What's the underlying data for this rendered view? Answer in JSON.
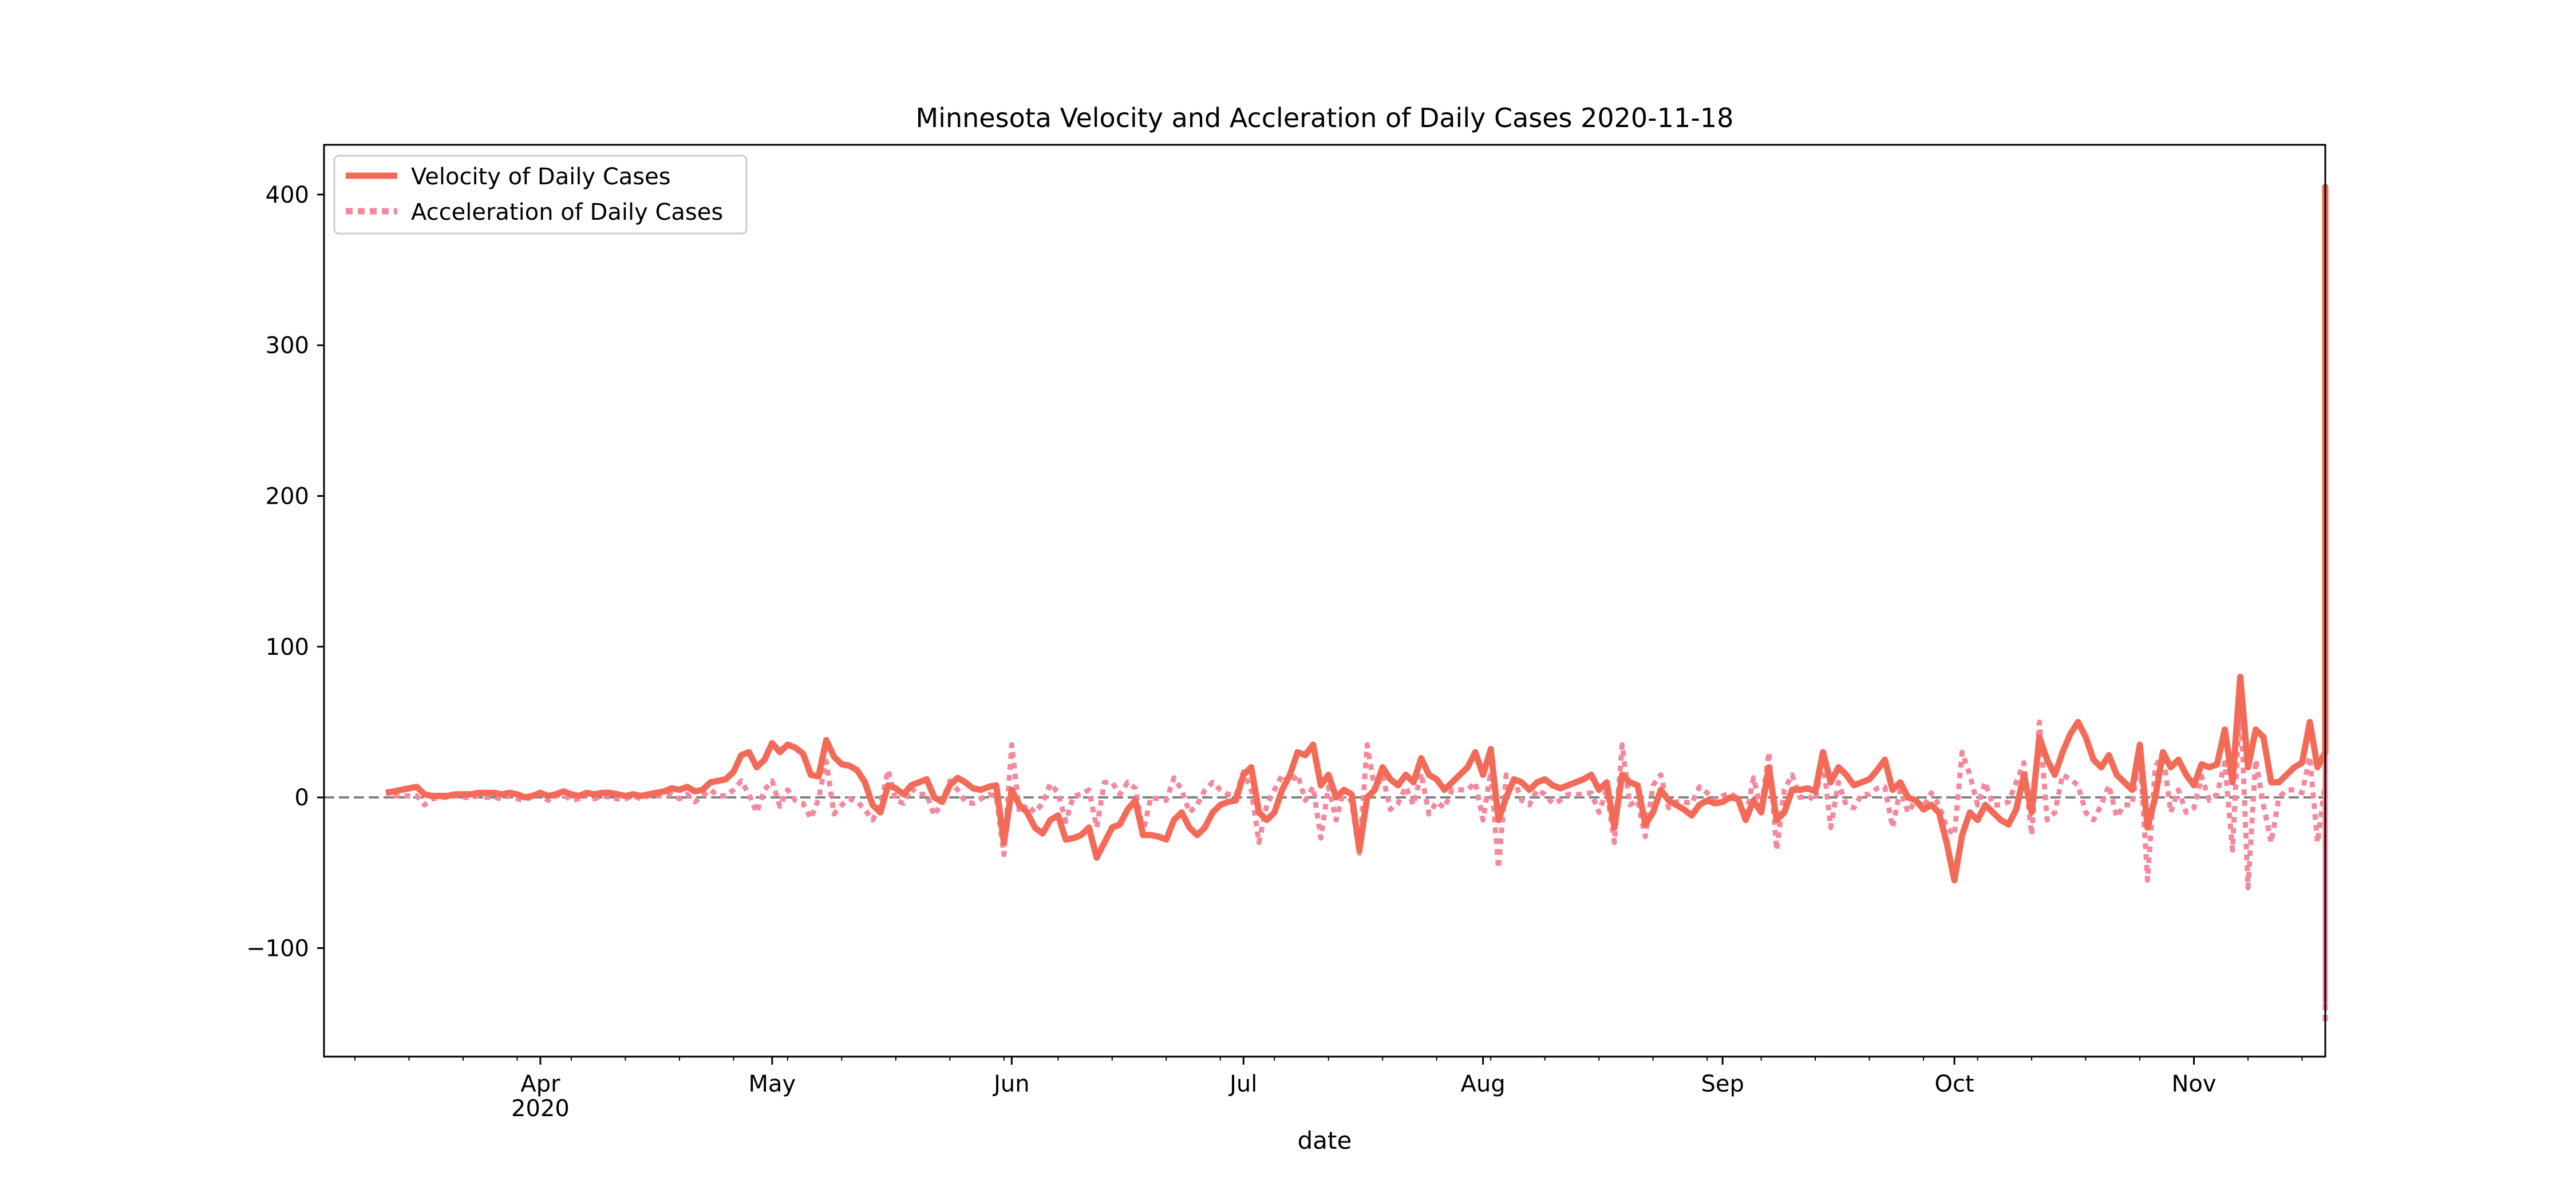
{
  "chart_data": {
    "type": "line",
    "title": "Minnesota Velocity and Accleration of Daily Cases 2020-11-18",
    "xlabel": "date",
    "ylabel": "",
    "x_range": [
      "2020-03-04",
      "2020-11-18"
    ],
    "ylim": [
      -172,
      433
    ],
    "y_ticks": [
      -100,
      0,
      100,
      200,
      300,
      400
    ],
    "y_tick_labels": [
      "−100",
      "0",
      "100",
      "200",
      "300",
      "400"
    ],
    "x_ticks": [
      {
        "date": "2020-04-01",
        "label": "Apr",
        "sublabel": "2020"
      },
      {
        "date": "2020-05-01",
        "label": "May",
        "sublabel": ""
      },
      {
        "date": "2020-06-01",
        "label": "Jun",
        "sublabel": ""
      },
      {
        "date": "2020-07-01",
        "label": "Jul",
        "sublabel": ""
      },
      {
        "date": "2020-08-01",
        "label": "Aug",
        "sublabel": ""
      },
      {
        "date": "2020-09-01",
        "label": "Sep",
        "sublabel": ""
      },
      {
        "date": "2020-10-01",
        "label": "Oct",
        "sublabel": ""
      },
      {
        "date": "2020-11-01",
        "label": "Nov",
        "sublabel": ""
      }
    ],
    "grid": false,
    "legend": {
      "position": "top-left"
    },
    "zero_line": {
      "value": 0,
      "style": "dashed",
      "color": "#808080"
    },
    "series": [
      {
        "name": "Velocity of Daily Cases",
        "color": "#f36b58",
        "style": "solid",
        "start_date": "2020-03-12",
        "values": [
          3,
          4,
          5,
          6,
          7,
          2,
          1,
          1,
          1,
          2,
          2,
          2,
          3,
          3,
          3,
          2,
          3,
          2,
          0,
          1,
          3,
          1,
          2,
          4,
          2,
          1,
          3,
          2,
          3,
          3,
          2,
          1,
          2,
          1,
          2,
          3,
          4,
          6,
          5,
          7,
          4,
          5,
          10,
          11,
          12,
          17,
          28,
          30,
          20,
          25,
          36,
          30,
          35,
          33,
          29,
          15,
          14,
          38,
          27,
          22,
          21,
          18,
          10,
          -5,
          -10,
          8,
          6,
          2,
          8,
          10,
          12,
          0,
          -3,
          8,
          13,
          10,
          6,
          5,
          7,
          8,
          -30,
          5,
          -5,
          -10,
          -20,
          -24,
          -15,
          -12,
          -28,
          -27,
          -25,
          -20,
          -40,
          -30,
          -20,
          -18,
          -8,
          -2,
          -25,
          -25,
          -26,
          -28,
          -15,
          -10,
          -20,
          -25,
          -20,
          -10,
          -5,
          -3,
          -2,
          15,
          20,
          -10,
          -15,
          -10,
          5,
          15,
          30,
          28,
          35,
          8,
          15,
          0,
          5,
          2,
          -35,
          0,
          5,
          20,
          12,
          8,
          15,
          10,
          26,
          15,
          12,
          5,
          10,
          15,
          20,
          30,
          15,
          32,
          -15,
          0,
          12,
          10,
          5,
          10,
          12,
          8,
          6,
          8,
          10,
          12,
          15,
          5,
          10,
          -20,
          15,
          10,
          8,
          -18,
          -10,
          5,
          -2,
          -5,
          -8,
          -12,
          -5,
          -2,
          -4,
          -3,
          0,
          -1,
          -15,
          -2,
          -10,
          20,
          -15,
          -10,
          5,
          5,
          6,
          4,
          30,
          10,
          20,
          15,
          8,
          10,
          12,
          18,
          25,
          5,
          10,
          0,
          -2,
          -8,
          -5,
          -10,
          -30,
          -55,
          -25,
          -10,
          -15,
          -5,
          -10,
          -15,
          -18,
          -8,
          15,
          -10,
          40,
          25,
          15,
          30,
          42,
          50,
          40,
          25,
          20,
          28,
          15,
          10,
          5,
          35,
          -20,
          0,
          30,
          20,
          25,
          15,
          8,
          22,
          20,
          22,
          45,
          10,
          80,
          20,
          45,
          40,
          10,
          10,
          15,
          20,
          23,
          50,
          20,
          30,
          70,
          40,
          120,
          60,
          90,
          30,
          100,
          170,
          195,
          170,
          265,
          165,
          300,
          165,
          195,
          210,
          310,
          170,
          405,
          380,
          320,
          170,
          90
        ]
      },
      {
        "name": "Acceleration of Daily Cases",
        "color": "#f4899d",
        "style": "dotted",
        "start_date": "2020-03-13",
        "values": [
          1,
          1,
          1,
          1,
          -5,
          -1,
          0,
          0,
          1,
          0,
          0,
          1,
          0,
          0,
          -1,
          1,
          -1,
          -2,
          1,
          2,
          -2,
          1,
          2,
          -2,
          -1,
          2,
          -1,
          1,
          0,
          -1,
          -1,
          1,
          -1,
          1,
          1,
          1,
          2,
          -1,
          2,
          -3,
          1,
          5,
          1,
          1,
          5,
          11,
          2,
          -10,
          5,
          11,
          -6,
          5,
          -2,
          -4,
          -14,
          -1,
          24,
          -11,
          -5,
          -1,
          -3,
          -8,
          -15,
          -5,
          18,
          -2,
          -4,
          6,
          2,
          2,
          -12,
          -3,
          11,
          5,
          -3,
          -4,
          -1,
          2,
          1,
          -38,
          35,
          -10,
          -5,
          -10,
          -4,
          9,
          3,
          -16,
          1,
          2,
          5,
          -20,
          10,
          10,
          2,
          10,
          6,
          -23,
          0,
          -1,
          -2,
          13,
          5,
          -10,
          -5,
          5,
          10,
          5,
          2,
          1,
          17,
          5,
          -30,
          -5,
          5,
          15,
          10,
          15,
          -2,
          7,
          -27,
          7,
          -15,
          5,
          -3,
          -37,
          35,
          5,
          15,
          -8,
          -4,
          7,
          -5,
          16,
          -11,
          -3,
          -7,
          5,
          5,
          5,
          10,
          -15,
          17,
          -47,
          15,
          12,
          -2,
          -5,
          5,
          2,
          -4,
          -2,
          2,
          2,
          2,
          3,
          -10,
          5,
          -30,
          35,
          -5,
          -2,
          -26,
          8,
          15,
          -7,
          -3,
          -3,
          -4,
          7,
          3,
          -2,
          1,
          3,
          -1,
          -14,
          13,
          -8,
          30,
          -35,
          5,
          15,
          0,
          1,
          -2,
          26,
          -20,
          10,
          -5,
          -7,
          2,
          2,
          6,
          7,
          -20,
          5,
          -10,
          -2,
          -6,
          3,
          -5,
          -20,
          -25,
          30,
          15,
          -5,
          10,
          -5,
          -5,
          -3,
          10,
          23,
          -25,
          50,
          -15,
          -10,
          15,
          12,
          8,
          -10,
          -15,
          -5,
          8,
          -13,
          -5,
          -5,
          30,
          -55,
          20,
          30,
          -10,
          5,
          -10,
          -7,
          14,
          -2,
          2,
          23,
          -35,
          70,
          -60,
          25,
          -5,
          -30,
          0,
          5,
          5,
          3,
          27,
          -30,
          10,
          40,
          -30,
          80,
          -60,
          30,
          -60,
          70,
          70,
          25,
          -25,
          95,
          -100,
          135,
          -135,
          30,
          15,
          100,
          -140,
          235,
          -25,
          -60,
          -150,
          -80
        ]
      }
    ]
  }
}
